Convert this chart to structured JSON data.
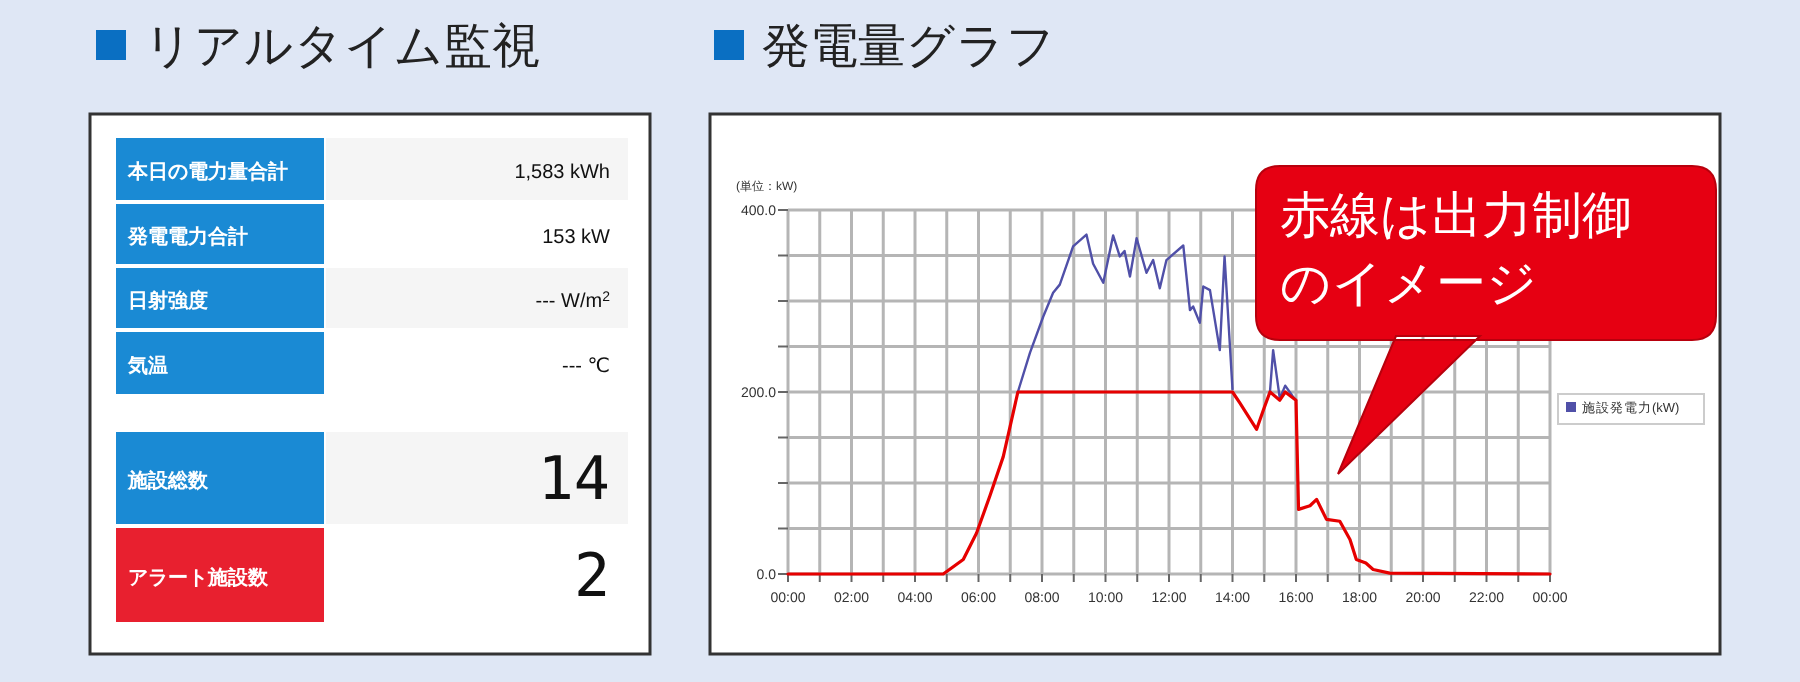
{
  "chart_data": [
    {
      "type": "other",
      "title": "リアルタイム監視",
      "categories": [
        "本日の電力量合計",
        "発電電力合計",
        "日射強度",
        "気温",
        "施設総数",
        "アラート施設数"
      ],
      "value_labels": [
        "1,583  kWh",
        "153  kW",
        "--- W/m$^{2}$",
        "---  ℃",
        "14",
        "2"
      ],
      "colors": [
        "#1a8ad4",
        "#1a8ad4",
        "#1a8ad4",
        "#1a8ad4",
        "#1a8ad4",
        "#e8202f"
      ]
    },
    {
      "type": "line",
      "title": "発電量グラフ",
      "ylabel": "(単位：kW)",
      "xlim": [
        0,
        24
      ],
      "ylim": [
        0,
        400
      ],
      "xticks": [
        {
          "value": 0,
          "label": "00:00"
        },
        {
          "value": 1,
          "label": null
        },
        {
          "value": 2,
          "label": "02:00"
        },
        {
          "value": 3,
          "label": null
        },
        {
          "value": 4,
          "label": "04:00"
        },
        {
          "value": 5,
          "label": null
        },
        {
          "value": 6,
          "label": "06:00"
        },
        {
          "value": 7,
          "label": null
        },
        {
          "value": 8,
          "label": "08:00"
        },
        {
          "value": 9,
          "label": null
        },
        {
          "value": 10,
          "label": "10:00"
        },
        {
          "value": 11,
          "label": null
        },
        {
          "value": 12,
          "label": "12:00"
        },
        {
          "value": 13,
          "label": null
        },
        {
          "value": 14,
          "label": "14:00"
        },
        {
          "value": 15,
          "label": null
        },
        {
          "value": 16,
          "label": "16:00"
        },
        {
          "value": 17,
          "label": null
        },
        {
          "value": 18,
          "label": "18:00"
        },
        {
          "value": 19,
          "label": null
        },
        {
          "value": 20,
          "label": "20:00"
        },
        {
          "value": 21,
          "label": null
        },
        {
          "value": 22,
          "label": "22:00"
        },
        {
          "value": 23,
          "label": null
        },
        {
          "value": 24,
          "label": "00:00"
        }
      ],
      "yticks": [
        {
          "value": 0,
          "label": "0.0"
        },
        {
          "value": 50,
          "label": null
        },
        {
          "value": 100,
          "label": null
        },
        {
          "value": 150,
          "label": null
        },
        {
          "value": 200,
          "label": "200.0"
        },
        {
          "value": 250,
          "label": null
        },
        {
          "value": 300,
          "label": null
        },
        {
          "value": 350,
          "label": null
        },
        {
          "value": 400,
          "label": "400.0"
        }
      ],
      "grid": true,
      "legend": "right",
      "series": [
        {
          "name": "施設発電力(kW)",
          "color": "#5050a8",
          "x": [
            7.24,
            7.62,
            8.04,
            8.35,
            8.56,
            8.98,
            9.4,
            9.61,
            9.93,
            10.24,
            10.45,
            10.6,
            10.77,
            10.98,
            11.29,
            11.5,
            11.71,
            11.92,
            12.45,
            12.66,
            12.76,
            12.97,
            13.08,
            13.29,
            13.6,
            13.75,
            14.0,
            14.5,
            14.97,
            15.18,
            15.28,
            15.49,
            15.66,
            15.9,
            16.0
          ],
          "values": [
            200,
            243,
            283,
            309,
            318,
            360,
            373,
            341,
            320,
            372,
            349,
            355,
            327,
            369,
            331,
            345,
            314,
            345,
            361,
            290,
            294,
            276,
            316,
            312,
            246,
            349,
            203,
            null,
            null,
            200,
            246,
            193,
            207,
            195,
            191
          ]
        },
        {
          "color": "#e60000",
          "x": [
            0,
            4.89,
            5.52,
            5.94,
            6.36,
            6.78,
            7.24,
            14.0,
            14.23,
            14.76,
            14.97,
            15.18,
            15.49,
            15.66,
            16.0,
            16.08,
            16.44,
            16.65,
            16.96,
            17.38,
            17.7,
            17.9,
            18.2,
            18.43,
            18.95,
            24
          ],
          "values": [
            0,
            0,
            16,
            45,
            86,
            129,
            200,
            200,
            188,
            159,
            180,
            200,
            191,
            200,
            191,
            71,
            75,
            82,
            60,
            58,
            38,
            16,
            12,
            5,
            1,
            0
          ]
        }
      ],
      "annotations": [
        "赤線は出力制御のイメージ"
      ]
    }
  ]
}
